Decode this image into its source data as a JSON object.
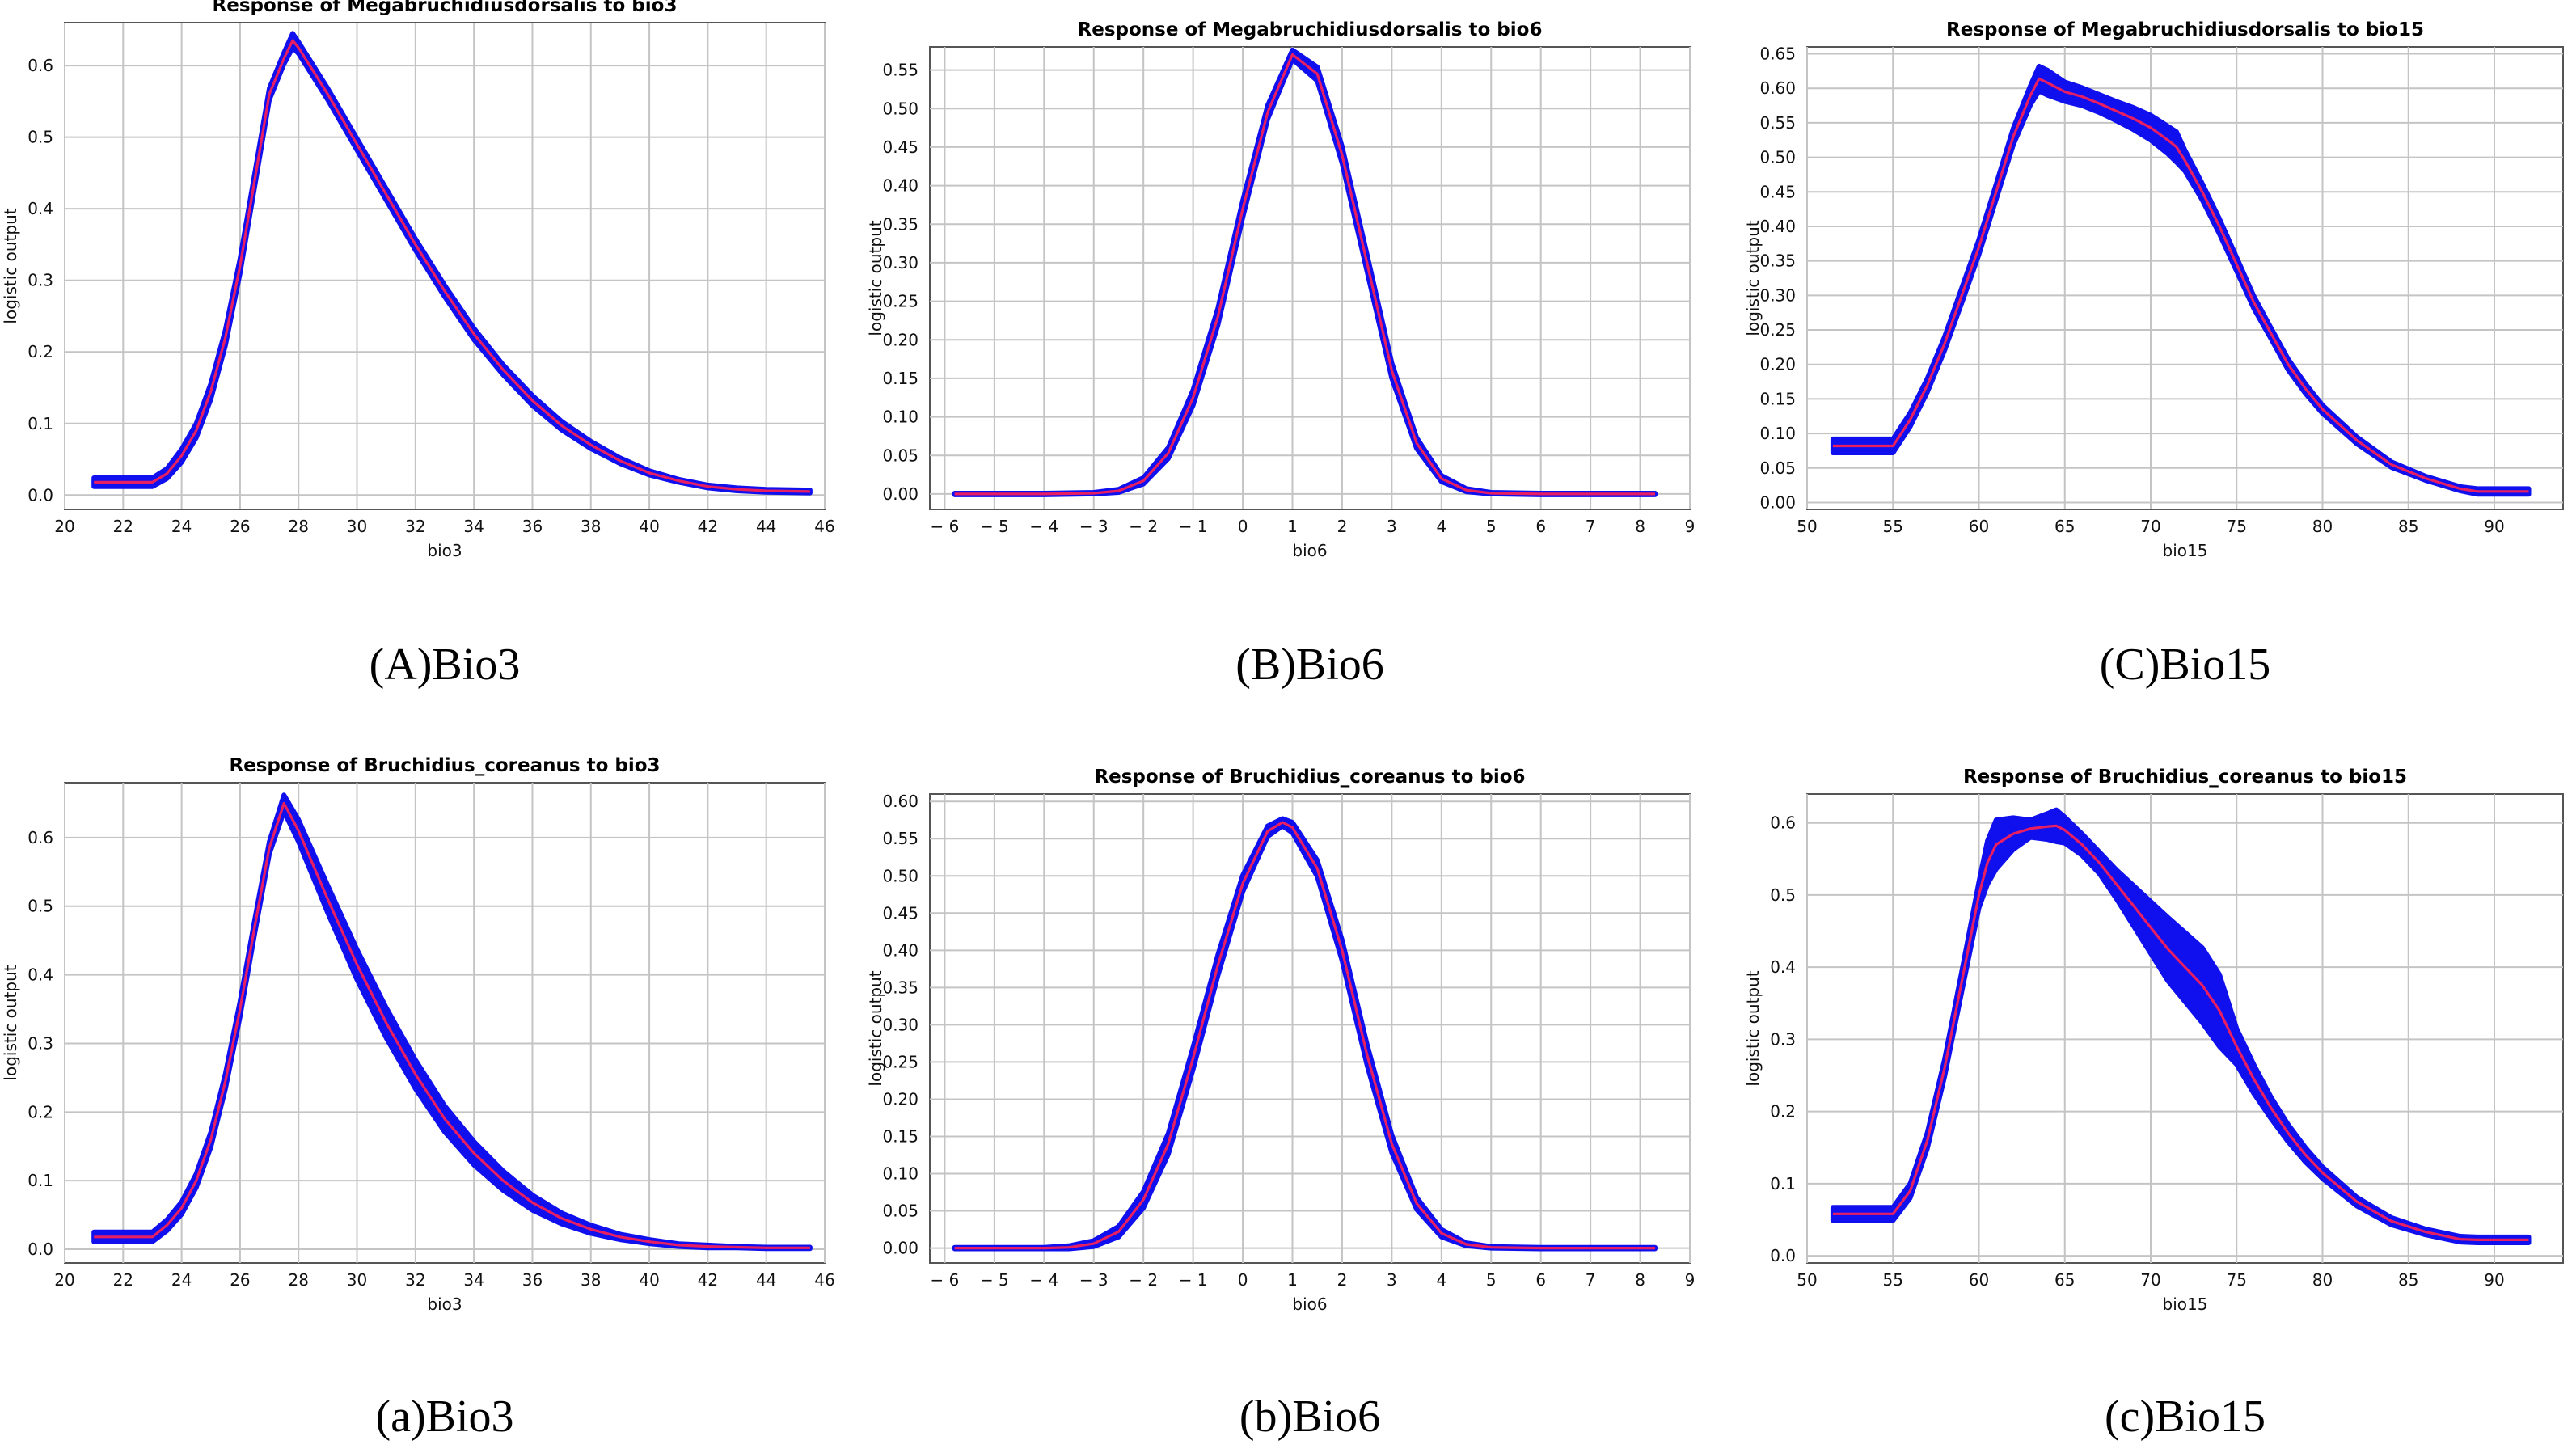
{
  "colors": {
    "band": "#1010ee",
    "mean": "#e81e63",
    "grid": "#c4c4c4"
  },
  "chart_data": [
    {
      "type": "line",
      "title": "Response of Megabruchidiusdorsalis to bio3",
      "xlabel": "bio3",
      "ylabel": "logistic output",
      "caption": "(A)Bio3",
      "xlim": [
        20,
        46
      ],
      "ylim": [
        -0.02,
        0.66
      ],
      "xticks": [
        20,
        22,
        24,
        26,
        28,
        30,
        32,
        34,
        36,
        38,
        40,
        42,
        44,
        46
      ],
      "yticks": [
        0.0,
        0.1,
        0.2,
        0.3,
        0.4,
        0.5,
        0.6
      ],
      "ydec": 1,
      "x": [
        21,
        23,
        23.5,
        24,
        24.5,
        25,
        25.5,
        26,
        26.5,
        27,
        27.5,
        27.8,
        28,
        29,
        30,
        31,
        32,
        33,
        34,
        35,
        36,
        37,
        38,
        39,
        40,
        41,
        42,
        43,
        44,
        45.5
      ],
      "mean": [
        0.018,
        0.018,
        0.03,
        0.055,
        0.09,
        0.145,
        0.22,
        0.32,
        0.44,
        0.56,
        0.61,
        0.635,
        0.625,
        0.56,
        0.49,
        0.42,
        0.35,
        0.285,
        0.225,
        0.175,
        0.132,
        0.097,
        0.07,
        0.048,
        0.031,
        0.02,
        0.012,
        0.008,
        0.006,
        0.005
      ],
      "halfwidth": [
        0.006,
        0.006,
        0.007,
        0.009,
        0.01,
        0.011,
        0.011,
        0.01,
        0.009,
        0.008,
        0.008,
        0.01,
        0.008,
        0.008,
        0.008,
        0.008,
        0.008,
        0.008,
        0.008,
        0.007,
        0.007,
        0.006,
        0.005,
        0.004,
        0.003,
        0.002,
        0.002,
        0.002,
        0.002,
        0.002
      ]
    },
    {
      "type": "line",
      "title": "Response of Megabruchidiusdorsalis to bio6",
      "xlabel": "bio6",
      "ylabel": "logistic output",
      "caption": "(B)Bio6",
      "xlim": [
        -6.3,
        9
      ],
      "ylim": [
        -0.02,
        0.58
      ],
      "xticks": [
        -6,
        -5,
        -4,
        -3,
        -2,
        -1,
        0,
        1,
        2,
        3,
        4,
        5,
        6,
        7,
        8,
        9
      ],
      "xminus": true,
      "yticks": [
        0.0,
        0.05,
        0.1,
        0.15,
        0.2,
        0.25,
        0.3,
        0.35,
        0.4,
        0.45,
        0.5,
        0.55
      ],
      "ydec": 2,
      "x": [
        -5.8,
        -4,
        -3,
        -2.5,
        -2,
        -1.5,
        -1,
        -0.5,
        0,
        0.5,
        1,
        1.5,
        2,
        2.5,
        3,
        3.5,
        4,
        4.5,
        5,
        6,
        8.3
      ],
      "mean": [
        0,
        0,
        0.001,
        0.004,
        0.017,
        0.053,
        0.125,
        0.23,
        0.37,
        0.495,
        0.57,
        0.545,
        0.44,
        0.3,
        0.16,
        0.066,
        0.02,
        0.005,
        0.001,
        0,
        0
      ],
      "halfwidth": [
        0.001,
        0.001,
        0.001,
        0.002,
        0.004,
        0.007,
        0.01,
        0.011,
        0.011,
        0.009,
        0.006,
        0.009,
        0.011,
        0.011,
        0.01,
        0.007,
        0.004,
        0.002,
        0.001,
        0.001,
        0.001
      ]
    },
    {
      "type": "line",
      "title": "Response of Megabruchidiusdorsalis to bio15",
      "xlabel": "bio15",
      "ylabel": "logistic output",
      "caption": "(C)Bio15",
      "xlim": [
        50,
        94
      ],
      "ylim": [
        -0.01,
        0.66
      ],
      "xticks": [
        50,
        55,
        60,
        65,
        70,
        75,
        80,
        85,
        90
      ],
      "yticks": [
        0.0,
        0.05,
        0.1,
        0.15,
        0.2,
        0.25,
        0.3,
        0.35,
        0.4,
        0.45,
        0.5,
        0.55,
        0.6,
        0.65
      ],
      "ydec": 2,
      "x": [
        51.5,
        55,
        56,
        57,
        58,
        59,
        60,
        61,
        62,
        63,
        63.5,
        64,
        65,
        66,
        67,
        68,
        69,
        70,
        71,
        71.5,
        72,
        73,
        74,
        75,
        76,
        77,
        78,
        79,
        80,
        82,
        84,
        86,
        88,
        89,
        92
      ],
      "mean": [
        0.082,
        0.082,
        0.12,
        0.17,
        0.23,
        0.3,
        0.37,
        0.45,
        0.53,
        0.59,
        0.614,
        0.608,
        0.595,
        0.588,
        0.578,
        0.567,
        0.556,
        0.543,
        0.525,
        0.515,
        0.495,
        0.45,
        0.4,
        0.345,
        0.29,
        0.245,
        0.2,
        0.165,
        0.135,
        0.09,
        0.055,
        0.035,
        0.02,
        0.016,
        0.016
      ],
      "halfwidth": [
        0.01,
        0.01,
        0.01,
        0.01,
        0.01,
        0.011,
        0.011,
        0.011,
        0.012,
        0.014,
        0.018,
        0.018,
        0.014,
        0.013,
        0.013,
        0.014,
        0.016,
        0.018,
        0.02,
        0.022,
        0.015,
        0.012,
        0.011,
        0.01,
        0.009,
        0.008,
        0.008,
        0.007,
        0.006,
        0.005,
        0.004,
        0.003,
        0.003,
        0.004,
        0.004
      ]
    },
    {
      "type": "line",
      "title": "Response of Bruchidius_coreanus to bio3",
      "xlabel": "bio3",
      "ylabel": "logistic output",
      "caption": "(a)Bio3",
      "xlim": [
        20,
        46
      ],
      "ylim": [
        -0.02,
        0.68
      ],
      "xticks": [
        20,
        22,
        24,
        26,
        28,
        30,
        32,
        34,
        36,
        38,
        40,
        42,
        44,
        46
      ],
      "yticks": [
        0.0,
        0.1,
        0.2,
        0.3,
        0.4,
        0.5,
        0.6
      ],
      "ydec": 1,
      "x": [
        21,
        23,
        23.5,
        24,
        24.5,
        25,
        25.5,
        26,
        26.5,
        27,
        27.5,
        28,
        29,
        30,
        31,
        32,
        33,
        34,
        35,
        36,
        37,
        38,
        39,
        40,
        41,
        42,
        43,
        44,
        45.5
      ],
      "mean": [
        0.018,
        0.018,
        0.035,
        0.06,
        0.1,
        0.16,
        0.245,
        0.35,
        0.47,
        0.585,
        0.65,
        0.61,
        0.51,
        0.415,
        0.33,
        0.255,
        0.19,
        0.14,
        0.1,
        0.068,
        0.045,
        0.029,
        0.018,
        0.011,
        0.006,
        0.004,
        0.003,
        0.002,
        0.002
      ],
      "halfwidth": [
        0.007,
        0.007,
        0.008,
        0.009,
        0.01,
        0.011,
        0.011,
        0.011,
        0.01,
        0.009,
        0.012,
        0.016,
        0.02,
        0.022,
        0.022,
        0.021,
        0.019,
        0.017,
        0.014,
        0.011,
        0.008,
        0.006,
        0.004,
        0.003,
        0.002,
        0.002,
        0.001,
        0.001,
        0.001
      ]
    },
    {
      "type": "line",
      "title": "Response of Bruchidius_coreanus to bio6",
      "xlabel": "bio6",
      "ylabel": "logistic output",
      "caption": "(b)Bio6",
      "xlim": [
        -6.3,
        9
      ],
      "ylim": [
        -0.02,
        0.61
      ],
      "xticks": [
        -6,
        -5,
        -4,
        -3,
        -2,
        -1,
        0,
        1,
        2,
        3,
        4,
        5,
        6,
        7,
        8,
        9
      ],
      "xminus": true,
      "yticks": [
        0.0,
        0.05,
        0.1,
        0.15,
        0.2,
        0.25,
        0.3,
        0.35,
        0.4,
        0.45,
        0.5,
        0.55,
        0.6
      ],
      "ydec": 2,
      "x": [
        -5.8,
        -4,
        -3.5,
        -3,
        -2.5,
        -2,
        -1.5,
        -1,
        -0.5,
        0,
        0.5,
        0.8,
        1,
        1.5,
        2,
        2.5,
        3,
        3.5,
        4,
        4.5,
        5,
        6,
        8.3
      ],
      "mean": [
        0,
        0,
        0.001,
        0.006,
        0.022,
        0.065,
        0.14,
        0.255,
        0.38,
        0.49,
        0.56,
        0.572,
        0.565,
        0.51,
        0.4,
        0.26,
        0.14,
        0.06,
        0.02,
        0.005,
        0.001,
        0,
        0
      ],
      "halfwidth": [
        0.001,
        0.001,
        0.002,
        0.004,
        0.007,
        0.011,
        0.014,
        0.015,
        0.014,
        0.011,
        0.007,
        0.005,
        0.007,
        0.011,
        0.014,
        0.014,
        0.012,
        0.008,
        0.005,
        0.002,
        0.001,
        0.001,
        0.001
      ]
    },
    {
      "type": "line",
      "title": "Response of Bruchidius_coreanus to bio15",
      "xlabel": "bio15",
      "ylabel": "logistic output",
      "caption": "(c)Bio15",
      "xlim": [
        50,
        94
      ],
      "ylim": [
        -0.01,
        0.64
      ],
      "xticks": [
        50,
        55,
        60,
        65,
        70,
        75,
        80,
        85,
        90
      ],
      "yticks": [
        0.0,
        0.1,
        0.2,
        0.3,
        0.4,
        0.5,
        0.6
      ],
      "ydec": 1,
      "x": [
        51.5,
        55,
        56,
        57,
        58,
        59,
        60,
        60.5,
        61,
        62,
        63,
        64,
        64.5,
        65,
        66,
        67,
        68,
        69,
        70,
        71,
        72,
        73,
        74,
        75,
        76,
        77,
        78,
        79,
        80,
        82,
        84,
        86,
        88,
        89,
        92
      ],
      "mean": [
        0.058,
        0.058,
        0.09,
        0.16,
        0.26,
        0.38,
        0.5,
        0.545,
        0.57,
        0.585,
        0.592,
        0.595,
        0.596,
        0.59,
        0.57,
        0.545,
        0.515,
        0.485,
        0.455,
        0.425,
        0.4,
        0.375,
        0.34,
        0.29,
        0.245,
        0.205,
        0.17,
        0.14,
        0.115,
        0.075,
        0.048,
        0.033,
        0.023,
        0.022,
        0.022
      ],
      "halfwidth": [
        0.009,
        0.009,
        0.01,
        0.011,
        0.012,
        0.014,
        0.018,
        0.03,
        0.034,
        0.022,
        0.012,
        0.018,
        0.022,
        0.018,
        0.015,
        0.015,
        0.02,
        0.028,
        0.036,
        0.044,
        0.048,
        0.052,
        0.05,
        0.025,
        0.02,
        0.015,
        0.012,
        0.01,
        0.008,
        0.006,
        0.005,
        0.004,
        0.004,
        0.004,
        0.004
      ]
    }
  ]
}
